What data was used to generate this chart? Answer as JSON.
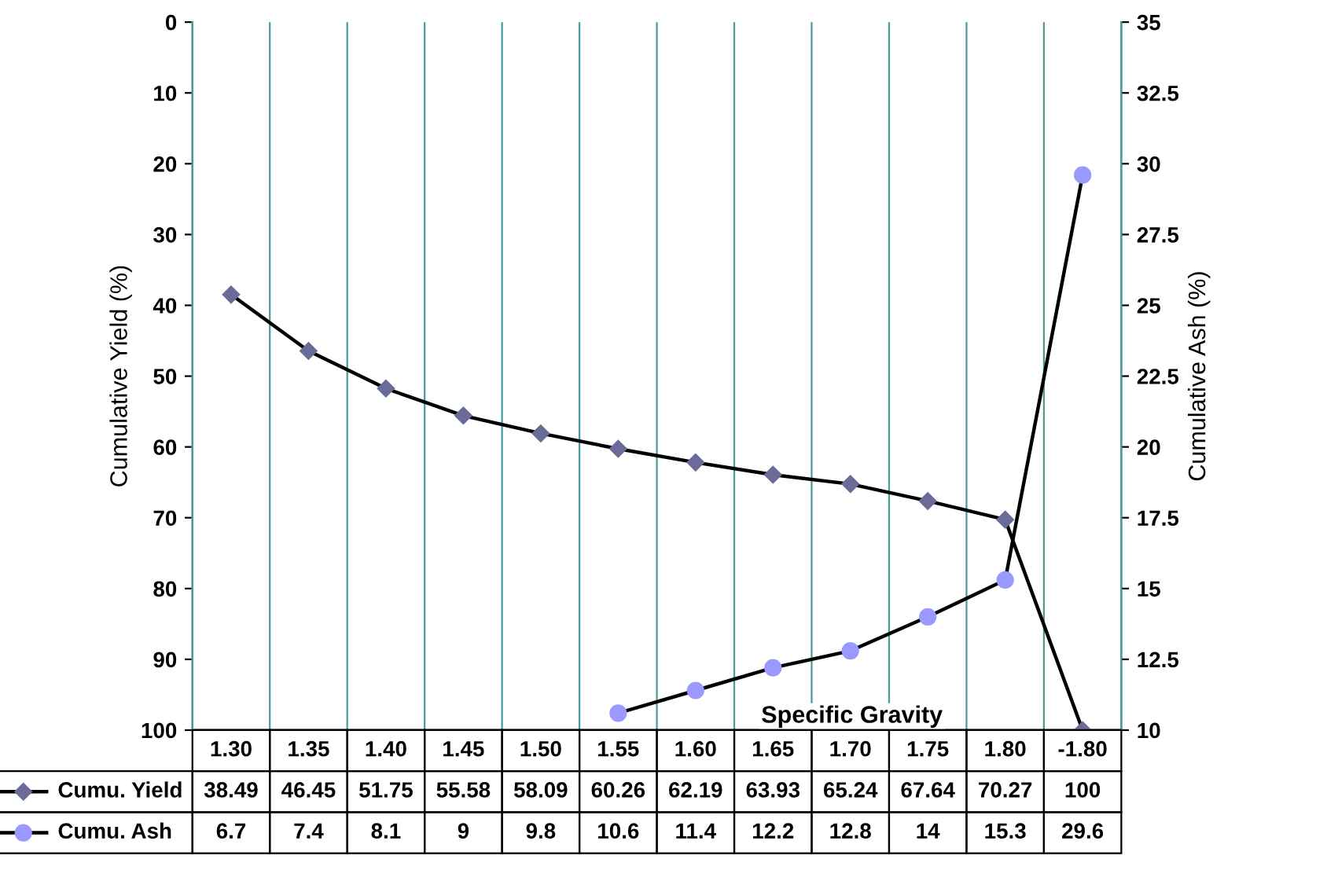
{
  "chart_data": {
    "type": "line",
    "xlabel": "Specific Gravity",
    "ylabel": "Cumulative Yield (%)",
    "y2label": "Cumulative Ash (%)",
    "categories": [
      "1.30",
      "1.35",
      "1.40",
      "1.45",
      "1.50",
      "1.55",
      "1.60",
      "1.65",
      "1.70",
      "1.75",
      "1.80",
      "-1.80"
    ],
    "series": [
      {
        "name": "Cumu. Yield",
        "color": "#6b6b9a",
        "marker": "diamond",
        "values": [
          38.49,
          46.45,
          51.75,
          55.58,
          58.09,
          60.26,
          62.19,
          63.93,
          65.24,
          67.64,
          70.27,
          100
        ],
        "value_labels": [
          "38.49",
          "46.45",
          "51.75",
          "55.58",
          "58.09",
          "60.26",
          "62.19",
          "63.93",
          "65.24",
          "67.64",
          "70.27",
          "100"
        ]
      },
      {
        "name": "Cumu. Ash",
        "color": "#9999ff",
        "marker": "circle",
        "axis": "y2",
        "values": [
          null,
          null,
          null,
          null,
          null,
          10.6,
          11.4,
          12.2,
          12.8,
          14,
          15.3,
          29.6
        ],
        "value_labels": [
          "6.7",
          "7.4",
          "8.1",
          "9",
          "9.8",
          "10.6",
          "11.4",
          "12.2",
          "12.8",
          "14",
          "15.3",
          "29.6"
        ]
      }
    ],
    "ylim": [
      100,
      0
    ],
    "yticks": [
      0,
      10,
      20,
      30,
      40,
      50,
      60,
      70,
      80,
      90,
      100
    ],
    "y2lim": [
      10,
      35
    ],
    "y2ticks": [
      10,
      12.5,
      15,
      17.5,
      20,
      22.5,
      25,
      27.5,
      30,
      32.5,
      35
    ],
    "grid": "x",
    "legend": "bottom",
    "line_style": "solid"
  }
}
